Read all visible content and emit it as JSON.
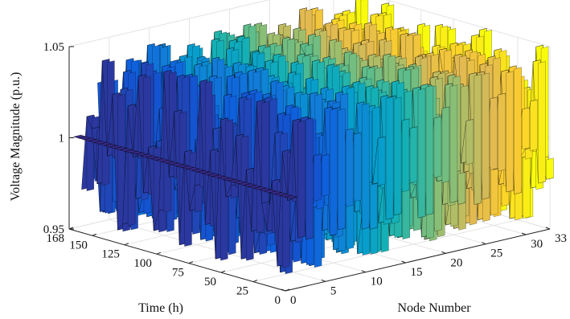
{
  "chart_data": {
    "type": "3d-surface",
    "title": "",
    "xlabel": "Node Number",
    "ylabel": "Time (h)",
    "zlabel": "Voltage Magnitude (p.u.)",
    "xlim": [
      0,
      33
    ],
    "ylim": [
      0,
      168
    ],
    "zlim": [
      0.95,
      1.05
    ],
    "x_ticks": [
      "0",
      "5",
      "10",
      "15",
      "20",
      "25",
      "30",
      "33"
    ],
    "y_ticks": [
      "0",
      "25",
      "50",
      "75",
      "100",
      "125",
      "150",
      "168"
    ],
    "z_ticks": [
      "0.95",
      "1",
      "1.05"
    ],
    "colormap": "parula",
    "edge_color": "#000000",
    "grid": true,
    "legend": "none",
    "nodes": [
      1,
      2,
      3,
      4,
      5,
      6,
      7,
      8,
      9,
      10,
      11,
      12,
      13,
      14,
      15,
      16,
      17,
      18,
      19,
      20,
      21,
      22,
      23,
      24,
      25,
      26,
      27,
      28,
      29,
      30,
      31,
      32,
      33
    ],
    "series_summary": [
      {
        "node": 1,
        "min": 1.0,
        "max": 1.0
      },
      {
        "node": 2,
        "min": 0.955,
        "max": 1.05
      },
      {
        "node": 6,
        "min": 0.955,
        "max": 1.04
      },
      {
        "node": 10,
        "min": 0.955,
        "max": 1.035
      },
      {
        "node": 14,
        "min": 0.955,
        "max": 1.03
      },
      {
        "node": 18,
        "min": 0.955,
        "max": 1.045
      },
      {
        "node": 22,
        "min": 0.955,
        "max": 1.05
      },
      {
        "node": 26,
        "min": 0.96,
        "max": 1.05
      },
      {
        "node": 30,
        "min": 0.96,
        "max": 1.05
      },
      {
        "node": 33,
        "min": 0.96,
        "max": 1.05
      }
    ]
  }
}
